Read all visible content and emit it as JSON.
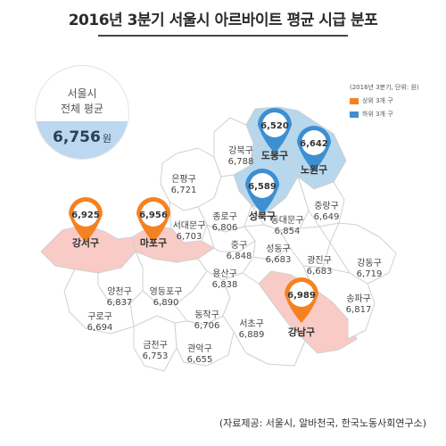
{
  "title": "2016년 3분기 서울시 아르바이트 평균 시급 분포",
  "city_average": {
    "line1": "서울시",
    "line2": "전체 평균",
    "value": "6,756",
    "unit": "원"
  },
  "legend": {
    "caption": "(2016년 3분기, 단위: 원)",
    "items": [
      {
        "label": "상위 3개 구",
        "color": "#f58220"
      },
      {
        "label": "하위 3개 구",
        "color": "#3d8fd1"
      }
    ]
  },
  "colors": {
    "top": "#f58220",
    "bottom": "#3d8fd1",
    "top_fill": "#f9cbc6",
    "bottom_fill": "#b7d7ec",
    "base_fill": "#ffffff"
  },
  "source": "(자료제공: 서울시, 알바천국, 한국노동사회연구소)",
  "districts": [
    {
      "id": "dobong",
      "name": "도봉구",
      "wage": "6,520",
      "group": "bottom"
    },
    {
      "id": "nowon",
      "name": "노원구",
      "wage": "6,642",
      "group": "bottom"
    },
    {
      "id": "seongbuk",
      "name": "성북구",
      "wage": "6,589",
      "group": "bottom"
    },
    {
      "id": "gangseo",
      "name": "강서구",
      "wage": "6,925",
      "group": "top"
    },
    {
      "id": "mapo",
      "name": "마포구",
      "wage": "6,956",
      "group": "top"
    },
    {
      "id": "gangnam",
      "name": "강남구",
      "wage": "6,989",
      "group": "top"
    },
    {
      "id": "gangbuk",
      "name": "강북구",
      "wage": "6,788",
      "group": "none"
    },
    {
      "id": "eunpyeong",
      "name": "은평구",
      "wage": "6,721",
      "group": "none"
    },
    {
      "id": "seodaemun",
      "name": "서대문구",
      "wage": "6,703",
      "group": "none"
    },
    {
      "id": "jongno",
      "name": "종로구",
      "wage": "6,806",
      "group": "none"
    },
    {
      "id": "dongdaemun",
      "name": "동대문구",
      "wage": "6,854",
      "group": "none"
    },
    {
      "id": "jungnang",
      "name": "중랑구",
      "wage": "6,649",
      "group": "none"
    },
    {
      "id": "junggu",
      "name": "중구",
      "wage": "6,848",
      "group": "none"
    },
    {
      "id": "seongdong",
      "name": "성동구",
      "wage": "6,683",
      "group": "none"
    },
    {
      "id": "gwangjin",
      "name": "광진구",
      "wage": "6,683",
      "group": "none"
    },
    {
      "id": "gangdong",
      "name": "강동구",
      "wage": "6,719",
      "group": "none"
    },
    {
      "id": "yongsan",
      "name": "용산구",
      "wage": "6,838",
      "group": "none"
    },
    {
      "id": "yangcheon",
      "name": "양천구",
      "wage": "6,837",
      "group": "none"
    },
    {
      "id": "yeongdeungpo",
      "name": "영등포구",
      "wage": "6,890",
      "group": "none"
    },
    {
      "id": "guro",
      "name": "구로구",
      "wage": "6,694",
      "group": "none"
    },
    {
      "id": "dongjak",
      "name": "동작구",
      "wage": "6,706",
      "group": "none"
    },
    {
      "id": "seocho",
      "name": "서초구",
      "wage": "6,889",
      "group": "none"
    },
    {
      "id": "songpa",
      "name": "송파구",
      "wage": "6,817",
      "group": "none"
    },
    {
      "id": "geumcheon",
      "name": "금천구",
      "wage": "6,753",
      "group": "none"
    },
    {
      "id": "gwanak",
      "name": "관악구",
      "wage": "6,655",
      "group": "none"
    }
  ]
}
